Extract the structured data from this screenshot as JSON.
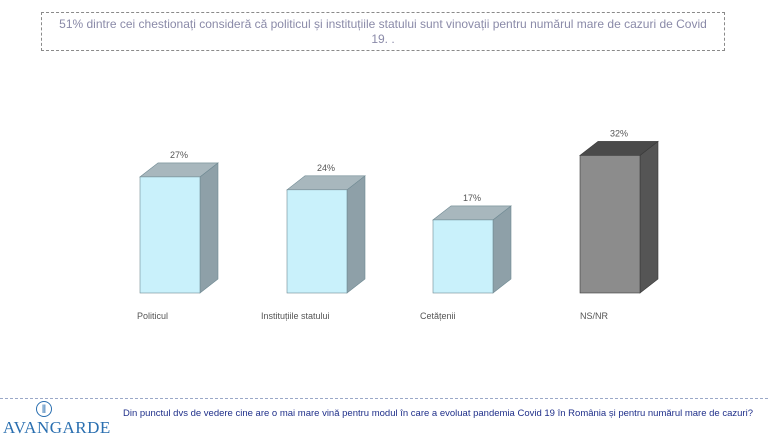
{
  "headline": "51% dintre cei chestionați consideră că politicul și instituțiile statului sunt vinovații pentru numărul mare de cazuri de Covid 19. .",
  "question": "Din punctul dvs de vedere cine are o mai mare vină pentru modul în care a evoluat pandemia Covid 19 în România și pentru numărul mare de cazuri?",
  "logo": {
    "text": "AVANGARDE",
    "icon": "logo-icon"
  },
  "colors": {
    "bar_light_front": "#c9f1fb",
    "bar_light_top": "#a8b7bd",
    "bar_light_side": "#8ea0a8",
    "bar_dark_front": "#8c8c8c",
    "bar_dark_top": "#4a4a4a",
    "bar_dark_side": "#555555",
    "label": "#555555",
    "headline": "#8a8aa8",
    "question": "#1f2f8a",
    "logo": "#2a6fb0"
  },
  "chart_data": {
    "type": "bar",
    "categories": [
      "Politicul",
      "Instituțiile statului",
      "Cetățenii",
      "NS/NR"
    ],
    "values": [
      27,
      24,
      17,
      32
    ],
    "value_labels": [
      "27%",
      "24%",
      "17%",
      "32%"
    ],
    "unit": "%",
    "ylim": [
      0,
      33
    ],
    "grid": false,
    "legend": "none",
    "style": "3d-column"
  }
}
